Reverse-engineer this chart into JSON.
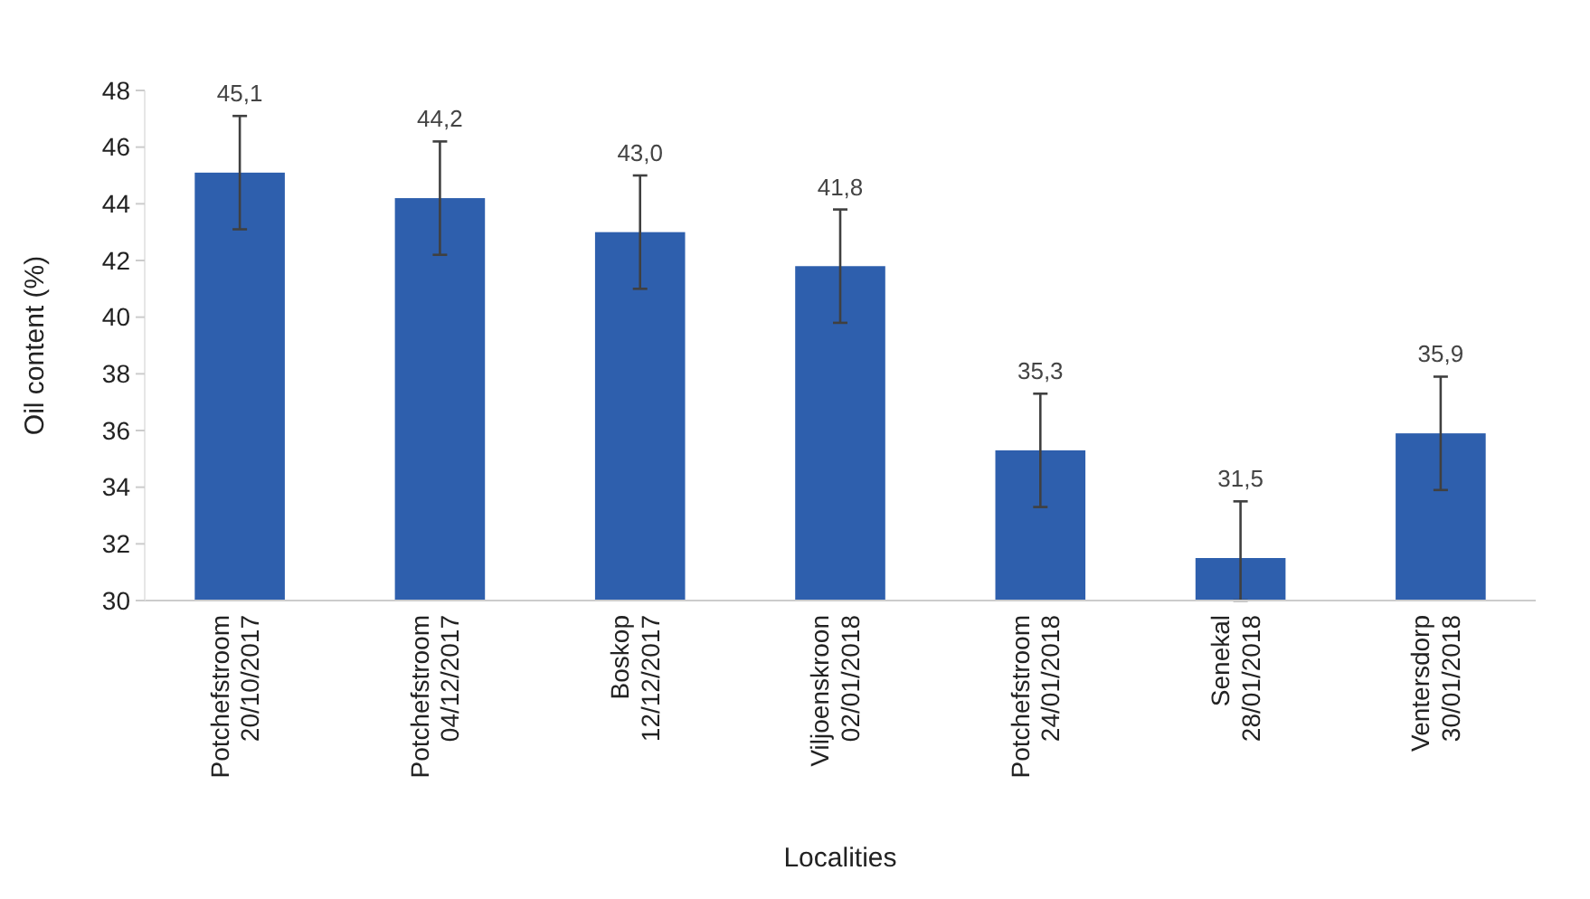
{
  "chart_data": {
    "type": "bar",
    "xlabel": "Localities",
    "ylabel": "Oil content (%)",
    "categories": [
      "Potchefstroom\n20/10/2017",
      "Potchefstroom\n04/12/2017",
      "Boskop\n12/12/2017",
      "Viljoenskroon\n02/01/2018",
      "Potchefstroom\n24/01/2018",
      "Senekal\n28/01/2018",
      "Ventersdorp\n30/01/2018"
    ],
    "values": [
      45.1,
      44.2,
      43.0,
      41.8,
      35.3,
      31.5,
      35.9
    ],
    "value_labels": [
      "45,1",
      "44,2",
      "43,0",
      "41,8",
      "35,3",
      "31,5",
      "35,9"
    ],
    "errors": [
      2,
      2,
      2,
      2,
      2,
      [
        30,
        33.5
      ],
      2
    ],
    "color": "#2e5fad",
    "ylim": [
      30,
      48
    ],
    "yticks": [
      30,
      32,
      34,
      36,
      38,
      40,
      42,
      44,
      46,
      48
    ],
    "grid": false
  }
}
